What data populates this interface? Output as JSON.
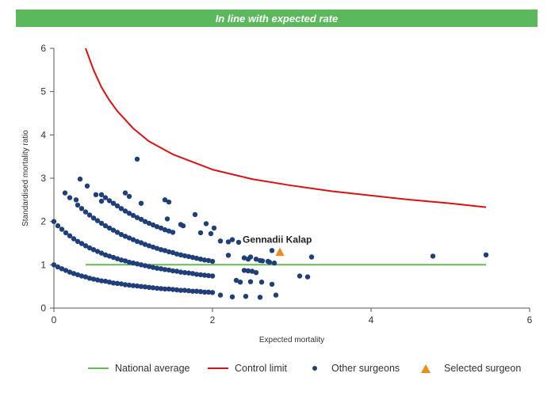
{
  "header": {
    "banner_text": "In line with expected rate",
    "banner_color": "#5cb85c"
  },
  "colors": {
    "national_average": "#66bb55",
    "control_limit": "#dd1111",
    "other_surgeons": "#1f3f7a",
    "selected_surgeon": "#f08a1c"
  },
  "legend": {
    "national_average": "National average",
    "control_limit": "Control limit",
    "other_surgeons": "Other surgeons",
    "selected_surgeon": "Selected surgeon"
  },
  "chart_data": {
    "type": "scatter",
    "title": "",
    "xlabel": "Expected mortality",
    "ylabel": "Standardised mortality ratio",
    "xlim": [
      0,
      6
    ],
    "ylim": [
      0,
      6
    ],
    "xticks": [
      0,
      2,
      4,
      6
    ],
    "yticks": [
      0,
      1,
      2,
      3,
      4,
      5,
      6
    ],
    "grid": false,
    "legend_position": "bottom",
    "series": [
      {
        "name": "National average",
        "type": "line",
        "x": [
          0.4,
          5.45
        ],
        "y": [
          1,
          1
        ]
      },
      {
        "name": "Control limit",
        "type": "line",
        "x": [
          0.4,
          0.5,
          0.6,
          0.7,
          0.8,
          1.0,
          1.2,
          1.5,
          2.0,
          2.5,
          3.0,
          3.5,
          4.0,
          4.5,
          5.0,
          5.45
        ],
        "y": [
          6.0,
          5.5,
          5.1,
          4.8,
          4.55,
          4.15,
          3.85,
          3.55,
          3.2,
          2.98,
          2.83,
          2.7,
          2.6,
          2.5,
          2.42,
          2.33
        ]
      },
      {
        "name": "Other surgeons",
        "type": "scatter",
        "x": [
          0.0,
          0.05,
          0.1,
          0.15,
          0.2,
          0.25,
          0.3,
          0.35,
          0.4,
          0.45,
          0.5,
          0.55,
          0.6,
          0.65,
          0.7,
          0.75,
          0.8,
          0.85,
          0.9,
          0.95,
          1.0,
          1.05,
          1.1,
          1.15,
          1.2,
          1.25,
          1.3,
          1.35,
          1.4,
          1.45,
          1.5,
          1.55,
          1.6,
          1.65,
          1.7,
          1.75,
          1.8,
          1.85,
          1.9,
          1.95,
          2.0,
          0.0,
          0.05,
          0.1,
          0.15,
          0.2,
          0.25,
          0.3,
          0.35,
          0.4,
          0.45,
          0.5,
          0.55,
          0.6,
          0.65,
          0.7,
          0.75,
          0.8,
          0.85,
          0.9,
          0.95,
          1.0,
          1.05,
          1.1,
          1.15,
          1.2,
          1.25,
          1.3,
          1.35,
          1.4,
          1.45,
          1.5,
          1.55,
          1.6,
          1.65,
          1.7,
          1.75,
          1.8,
          1.85,
          1.9,
          1.95,
          2.0,
          0.3,
          0.35,
          0.4,
          0.45,
          0.5,
          0.55,
          0.6,
          0.65,
          0.7,
          0.75,
          0.8,
          0.85,
          0.9,
          0.95,
          1.0,
          1.05,
          1.1,
          1.15,
          1.2,
          1.25,
          1.3,
          1.35,
          1.4,
          1.45,
          1.5,
          1.55,
          1.6,
          1.65,
          1.7,
          1.75,
          1.8,
          1.85,
          1.9,
          1.95,
          2.0,
          0.6,
          0.65,
          0.7,
          0.75,
          0.8,
          0.85,
          0.9,
          0.95,
          1.0,
          1.05,
          1.1,
          1.15,
          1.2,
          1.25,
          1.3,
          1.35,
          1.4,
          1.45,
          1.5,
          0.14,
          0.2,
          0.28,
          0.33,
          0.42,
          0.53,
          0.6,
          0.9,
          0.95,
          1.05,
          1.1,
          1.4,
          1.45,
          1.43,
          1.6,
          1.63,
          1.78,
          1.85,
          1.92,
          1.98,
          2.02,
          2.1,
          2.2,
          2.25,
          2.33,
          2.4,
          2.45,
          2.48,
          2.55,
          2.6,
          2.63,
          2.7,
          2.72,
          2.75,
          2.78,
          2.4,
          2.45,
          2.5,
          2.55,
          2.2,
          2.3,
          2.35,
          2.48,
          2.62,
          2.75,
          2.8,
          2.1,
          2.25,
          2.42,
          2.6,
          3.1,
          3.2,
          3.25,
          4.78,
          5.45
        ],
        "y": [
          2.0,
          1.9,
          1.82,
          1.74,
          1.67,
          1.6,
          1.54,
          1.49,
          1.44,
          1.39,
          1.35,
          1.31,
          1.27,
          1.23,
          1.2,
          1.17,
          1.14,
          1.11,
          1.09,
          1.06,
          1.04,
          1.02,
          1.0,
          0.98,
          0.96,
          0.94,
          0.92,
          0.91,
          0.89,
          0.88,
          0.86,
          0.85,
          0.83,
          0.82,
          0.81,
          0.8,
          0.78,
          0.77,
          0.76,
          0.75,
          0.74,
          1.0,
          0.95,
          0.91,
          0.87,
          0.83,
          0.8,
          0.77,
          0.74,
          0.72,
          0.69,
          0.67,
          0.65,
          0.63,
          0.62,
          0.6,
          0.58,
          0.57,
          0.56,
          0.54,
          0.53,
          0.52,
          0.51,
          0.5,
          0.49,
          0.48,
          0.47,
          0.46,
          0.45,
          0.44,
          0.44,
          0.43,
          0.42,
          0.41,
          0.41,
          0.4,
          0.39,
          0.39,
          0.38,
          0.37,
          0.37,
          0.36,
          2.38,
          2.3,
          2.22,
          2.15,
          2.08,
          2.02,
          1.96,
          1.9,
          1.85,
          1.8,
          1.75,
          1.7,
          1.66,
          1.62,
          1.58,
          1.54,
          1.51,
          1.47,
          1.44,
          1.41,
          1.38,
          1.35,
          1.33,
          1.3,
          1.28,
          1.25,
          1.23,
          1.21,
          1.19,
          1.17,
          1.15,
          1.13,
          1.11,
          1.1,
          1.08,
          2.62,
          2.55,
          2.48,
          2.42,
          2.36,
          2.3,
          2.24,
          2.19,
          2.14,
          2.09,
          2.05,
          2.0,
          1.96,
          1.92,
          1.88,
          1.85,
          1.81,
          1.78,
          1.75,
          2.66,
          2.55,
          2.5,
          2.98,
          2.82,
          2.62,
          2.47,
          2.66,
          2.58,
          3.44,
          2.42,
          2.5,
          2.45,
          2.06,
          1.93,
          1.9,
          2.16,
          1.74,
          1.95,
          1.72,
          1.85,
          1.55,
          1.53,
          1.58,
          1.52,
          1.16,
          1.13,
          1.18,
          1.13,
          1.1,
          1.09,
          1.08,
          1.06,
          1.33,
          1.04,
          0.87,
          0.86,
          0.85,
          0.82,
          1.22,
          0.64,
          0.6,
          0.61,
          0.6,
          0.55,
          0.3,
          0.3,
          0.26,
          0.27,
          0.25,
          0.74,
          0.72,
          1.18,
          1.2,
          1.23
        ]
      },
      {
        "name": "Selected surgeon",
        "type": "scatter",
        "label": "Gennadii Kalap",
        "x": [
          2.85
        ],
        "y": [
          1.29
        ]
      }
    ]
  }
}
